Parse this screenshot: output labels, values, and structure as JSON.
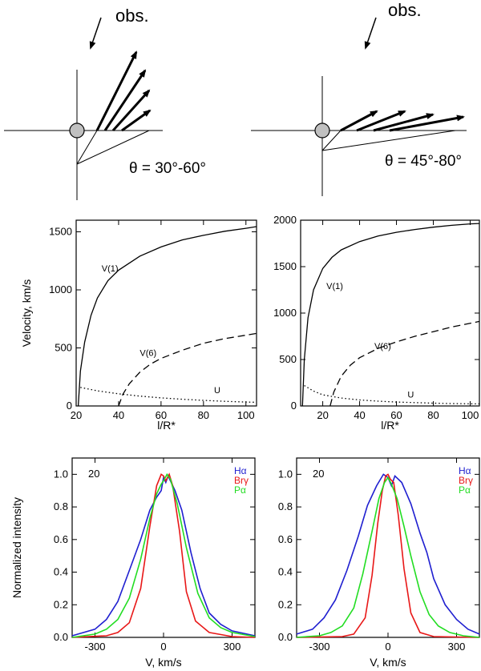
{
  "diagrams": [
    {
      "obs_label": "obs.",
      "theta_label": "θ = 30°-60°"
    },
    {
      "obs_label": "obs.",
      "theta_label": "θ = 45°-80°"
    }
  ],
  "chart_data": [
    {
      "type": "line",
      "id": "velocity-left",
      "ylabel": "Velocity, km/s",
      "xlabel": "l/R*",
      "xlim": [
        20,
        105
      ],
      "ylim": [
        0,
        1600
      ],
      "xticks": [
        20,
        40,
        60,
        80,
        100
      ],
      "yticks": [
        0,
        500,
        1000,
        1500
      ],
      "series": [
        {
          "name": "V(1)",
          "style": "solid",
          "points": [
            [
              21,
              0
            ],
            [
              22,
              300
            ],
            [
              24,
              550
            ],
            [
              27,
              780
            ],
            [
              30,
              930
            ],
            [
              35,
              1080
            ],
            [
              40,
              1170
            ],
            [
              50,
              1290
            ],
            [
              60,
              1370
            ],
            [
              70,
              1430
            ],
            [
              80,
              1470
            ],
            [
              90,
              1505
            ],
            [
              100,
              1530
            ],
            [
              105,
              1545
            ]
          ]
        },
        {
          "name": "V(6)",
          "style": "dashed",
          "points": [
            [
              40,
              0
            ],
            [
              42,
              100
            ],
            [
              45,
              190
            ],
            [
              50,
              290
            ],
            [
              55,
              360
            ],
            [
              60,
              410
            ],
            [
              70,
              480
            ],
            [
              80,
              540
            ],
            [
              90,
              580
            ],
            [
              100,
              610
            ],
            [
              105,
              625
            ]
          ]
        },
        {
          "name": "U",
          "style": "dotted",
          "points": [
            [
              22,
              160
            ],
            [
              30,
              130
            ],
            [
              40,
              105
            ],
            [
              50,
              85
            ],
            [
              60,
              70
            ],
            [
              70,
              58
            ],
            [
              80,
              48
            ],
            [
              90,
              40
            ],
            [
              100,
              34
            ],
            [
              105,
              32
            ]
          ]
        }
      ],
      "labels": [
        {
          "text": "V(1)",
          "x": 32,
          "y": 1160
        },
        {
          "text": "V(6)",
          "x": 50,
          "y": 430
        },
        {
          "text": "U",
          "x": 85,
          "y": 110
        }
      ]
    },
    {
      "type": "line",
      "id": "velocity-right",
      "ylabel": "",
      "xlabel": "l/R*",
      "xlim": [
        8,
        105
      ],
      "ylim": [
        0,
        2000
      ],
      "xticks": [
        20,
        40,
        60,
        80,
        100
      ],
      "yticks": [
        0,
        500,
        1000,
        1500,
        2000
      ],
      "series": [
        {
          "name": "V(1)",
          "style": "solid",
          "points": [
            [
              9,
              0
            ],
            [
              10,
              500
            ],
            [
              12,
              950
            ],
            [
              15,
              1250
            ],
            [
              20,
              1480
            ],
            [
              25,
              1600
            ],
            [
              30,
              1680
            ],
            [
              40,
              1770
            ],
            [
              50,
              1830
            ],
            [
              60,
              1870
            ],
            [
              70,
              1900
            ],
            [
              80,
              1925
            ],
            [
              90,
              1945
            ],
            [
              100,
              1960
            ],
            [
              105,
              1965
            ]
          ]
        },
        {
          "name": "V(6)",
          "style": "dashed",
          "points": [
            [
              24,
              0
            ],
            [
              26,
              150
            ],
            [
              30,
              320
            ],
            [
              35,
              440
            ],
            [
              40,
              520
            ],
            [
              50,
              620
            ],
            [
              60,
              690
            ],
            [
              70,
              750
            ],
            [
              80,
              800
            ],
            [
              90,
              850
            ],
            [
              100,
              890
            ],
            [
              105,
              910
            ]
          ]
        },
        {
          "name": "U",
          "style": "dotted",
          "points": [
            [
              10,
              220
            ],
            [
              15,
              160
            ],
            [
              20,
              120
            ],
            [
              30,
              85
            ],
            [
              40,
              65
            ],
            [
              50,
              52
            ],
            [
              60,
              42
            ],
            [
              70,
              36
            ],
            [
              80,
              30
            ],
            [
              90,
              26
            ],
            [
              100,
              23
            ],
            [
              105,
              22
            ]
          ]
        }
      ],
      "labels": [
        {
          "text": "V(1)",
          "x": 22,
          "y": 1260
        },
        {
          "text": "V(6)",
          "x": 48,
          "y": 610
        },
        {
          "text": "U",
          "x": 66,
          "y": 90
        }
      ]
    },
    {
      "type": "line",
      "id": "profiles-left",
      "ylabel": "Normalized intensity",
      "xlabel": "V, km/s",
      "xlim": [
        -400,
        400
      ],
      "ylim": [
        0,
        1.1
      ],
      "xticks": [
        -300,
        0,
        300
      ],
      "yticks": [
        0.0,
        0.2,
        0.4,
        0.6,
        0.8,
        1.0
      ],
      "annotation": "20",
      "series": [
        {
          "name": "Hα",
          "color": "#1f1fd0",
          "points": [
            [
              -400,
              0.01
            ],
            [
              -300,
              0.05
            ],
            [
              -250,
              0.11
            ],
            [
              -200,
              0.22
            ],
            [
              -150,
              0.41
            ],
            [
              -100,
              0.6
            ],
            [
              -60,
              0.78
            ],
            [
              -30,
              0.86
            ],
            [
              -10,
              0.9
            ],
            [
              0,
              0.98
            ],
            [
              10,
              0.95
            ],
            [
              20,
              0.99
            ],
            [
              30,
              0.96
            ],
            [
              50,
              0.9
            ],
            [
              80,
              0.78
            ],
            [
              120,
              0.52
            ],
            [
              160,
              0.3
            ],
            [
              200,
              0.15
            ],
            [
              250,
              0.08
            ],
            [
              300,
              0.04
            ],
            [
              400,
              0.01
            ]
          ]
        },
        {
          "name": "Brγ",
          "color": "#e81818",
          "points": [
            [
              -400,
              0.0
            ],
            [
              -250,
              0.01
            ],
            [
              -200,
              0.03
            ],
            [
              -150,
              0.09
            ],
            [
              -100,
              0.3
            ],
            [
              -60,
              0.68
            ],
            [
              -30,
              0.93
            ],
            [
              -10,
              1.0
            ],
            [
              0,
              0.99
            ],
            [
              10,
              0.96
            ],
            [
              25,
              1.0
            ],
            [
              40,
              0.93
            ],
            [
              70,
              0.65
            ],
            [
              100,
              0.28
            ],
            [
              140,
              0.1
            ],
            [
              200,
              0.03
            ],
            [
              300,
              0.005
            ],
            [
              400,
              0.0
            ]
          ]
        },
        {
          "name": "Pα",
          "color": "#22dd22",
          "points": [
            [
              -400,
              0.0
            ],
            [
              -300,
              0.02
            ],
            [
              -250,
              0.05
            ],
            [
              -200,
              0.11
            ],
            [
              -150,
              0.24
            ],
            [
              -100,
              0.48
            ],
            [
              -60,
              0.73
            ],
            [
              -30,
              0.88
            ],
            [
              -10,
              0.94
            ],
            [
              0,
              0.96
            ],
            [
              15,
              1.0
            ],
            [
              30,
              0.97
            ],
            [
              60,
              0.82
            ],
            [
              100,
              0.55
            ],
            [
              150,
              0.27
            ],
            [
              200,
              0.12
            ],
            [
              250,
              0.06
            ],
            [
              300,
              0.03
            ],
            [
              400,
              0.005
            ]
          ]
        }
      ]
    },
    {
      "type": "line",
      "id": "profiles-right",
      "ylabel": "",
      "xlabel": "V, km/s",
      "xlim": [
        -400,
        400
      ],
      "ylim": [
        0,
        1.1
      ],
      "xticks": [
        -300,
        0,
        300
      ],
      "yticks": [
        0.0,
        0.2,
        0.4,
        0.6,
        0.8,
        1.0
      ],
      "annotation": "20",
      "series": [
        {
          "name": "Hα",
          "color": "#1f1fd0",
          "points": [
            [
              -400,
              0.02
            ],
            [
              -330,
              0.05
            ],
            [
              -280,
              0.12
            ],
            [
              -230,
              0.23
            ],
            [
              -180,
              0.41
            ],
            [
              -130,
              0.62
            ],
            [
              -90,
              0.81
            ],
            [
              -50,
              0.93
            ],
            [
              -20,
              1.0
            ],
            [
              0,
              0.98
            ],
            [
              15,
              0.93
            ],
            [
              30,
              0.99
            ],
            [
              60,
              0.95
            ],
            [
              100,
              0.82
            ],
            [
              140,
              0.64
            ],
            [
              170,
              0.52
            ],
            [
              200,
              0.36
            ],
            [
              250,
              0.2
            ],
            [
              300,
              0.11
            ],
            [
              350,
              0.05
            ],
            [
              400,
              0.02
            ]
          ]
        },
        {
          "name": "Brγ",
          "color": "#e81818",
          "points": [
            [
              -400,
              0.0
            ],
            [
              -200,
              0.005
            ],
            [
              -150,
              0.02
            ],
            [
              -100,
              0.12
            ],
            [
              -70,
              0.38
            ],
            [
              -45,
              0.7
            ],
            [
              -25,
              0.9
            ],
            [
              -10,
              0.99
            ],
            [
              0,
              1.0
            ],
            [
              10,
              0.97
            ],
            [
              25,
              0.95
            ],
            [
              45,
              0.75
            ],
            [
              70,
              0.42
            ],
            [
              100,
              0.15
            ],
            [
              140,
              0.03
            ],
            [
              200,
              0.005
            ],
            [
              400,
              0.0
            ]
          ]
        },
        {
          "name": "Pα",
          "color": "#22dd22",
          "points": [
            [
              -400,
              0.0
            ],
            [
              -300,
              0.01
            ],
            [
              -250,
              0.03
            ],
            [
              -200,
              0.07
            ],
            [
              -150,
              0.18
            ],
            [
              -110,
              0.39
            ],
            [
              -70,
              0.65
            ],
            [
              -40,
              0.85
            ],
            [
              -15,
              0.95
            ],
            [
              0,
              0.98
            ],
            [
              15,
              0.94
            ],
            [
              40,
              0.85
            ],
            [
              70,
              0.68
            ],
            [
              100,
              0.5
            ],
            [
              140,
              0.28
            ],
            [
              180,
              0.14
            ],
            [
              220,
              0.07
            ],
            [
              270,
              0.03
            ],
            [
              330,
              0.01
            ],
            [
              400,
              0.0
            ]
          ]
        }
      ]
    }
  ]
}
